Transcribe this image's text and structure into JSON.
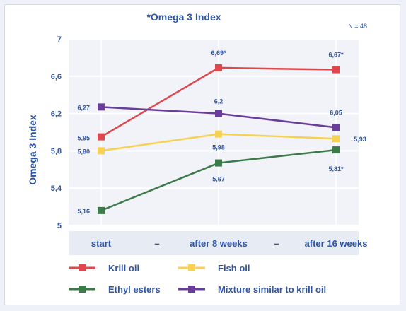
{
  "chart_data": {
    "type": "line",
    "title": "*Omega 3 Index",
    "sample_note": "N = 48",
    "ylabel": "Omega 3 Index",
    "xlabel": "",
    "ylim": [
      5,
      7
    ],
    "yticks": [
      "5",
      "5,4",
      "5,8",
      "6,2",
      "6,6",
      "7"
    ],
    "ytick_values": [
      5,
      5.4,
      5.8,
      6.2,
      6.6,
      7
    ],
    "categories": [
      "start",
      "after 8 weeks",
      "after 16 weeks"
    ],
    "x_separators": [
      "–",
      "–"
    ],
    "grid": true,
    "legend_position": "bottom",
    "series": [
      {
        "name": "Krill oil",
        "color": "#e0474c",
        "values": [
          5.95,
          6.69,
          6.67
        ],
        "labels": [
          "5,95",
          "6,69*",
          "6,67*"
        ]
      },
      {
        "name": "Fish oil",
        "color": "#f7d154",
        "values": [
          5.8,
          5.98,
          5.93
        ],
        "labels": [
          "5,80",
          "5,98",
          "5,93"
        ]
      },
      {
        "name": "Ethyl esters",
        "color": "#3c7a4a",
        "values": [
          5.16,
          5.67,
          5.81
        ],
        "labels": [
          "5,16",
          "5,67",
          "5,81*"
        ]
      },
      {
        "name": "Mixture similar to krill oil",
        "color": "#6a3d9a",
        "values": [
          6.27,
          6.2,
          6.05
        ],
        "labels": [
          "6,27",
          "6,2",
          "6,05"
        ]
      }
    ],
    "legend_order": [
      0,
      1,
      2,
      3
    ]
  },
  "colors": {
    "plot_background": "#f1f3f8",
    "grid": "#ffffff",
    "axis_band": "#e7ebf3",
    "text": "#2e55a3"
  }
}
